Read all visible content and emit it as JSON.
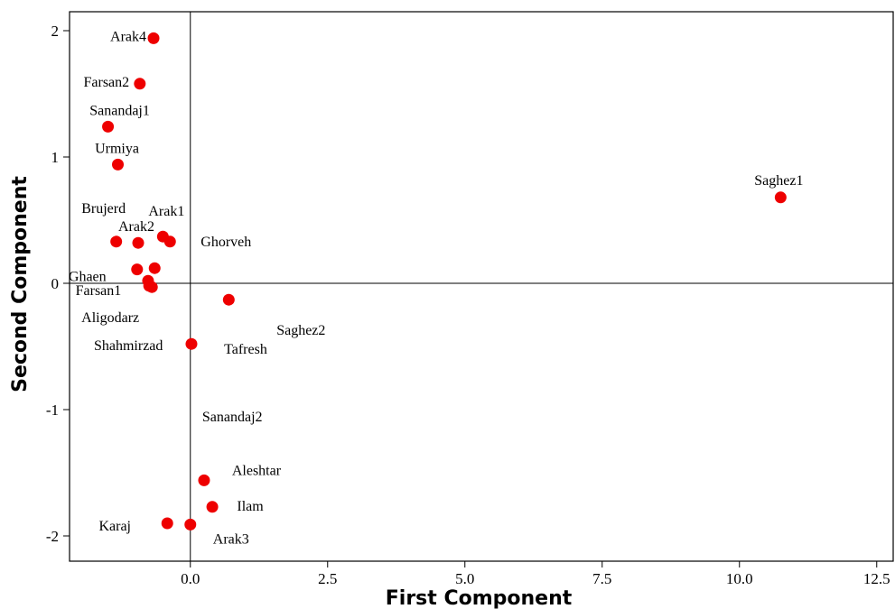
{
  "chart_data": {
    "type": "scatter",
    "title": "",
    "xlabel": "First Component",
    "ylabel": "Second Component",
    "xlim": [
      -2.2,
      12.8
    ],
    "ylim": [
      -2.2,
      2.15
    ],
    "x_ticks": [
      0.0,
      2.5,
      5.0,
      7.5,
      10.0,
      12.5
    ],
    "x_tick_labels": [
      "0.0",
      "2.5",
      "5.0",
      "7.5",
      "10.0",
      "12.5"
    ],
    "y_ticks": [
      2,
      1,
      0,
      -1,
      -2
    ],
    "y_tick_labels": [
      "2",
      "1",
      "0",
      "-1",
      "-2"
    ],
    "reference_lines": {
      "x": 0,
      "y": 0
    },
    "grid": false,
    "legend": "none",
    "point_color": "#ee0000",
    "points": [
      {
        "name": "Arak4",
        "x": -0.67,
        "y": 1.94
      },
      {
        "name": "Farsan2",
        "x": -0.92,
        "y": 1.58
      },
      {
        "name": "Sanandaj1",
        "x": -1.5,
        "y": 1.24
      },
      {
        "name": "Urmiya",
        "x": -1.32,
        "y": 0.94
      },
      {
        "name": "Brujerd",
        "x": -1.35,
        "y": 0.33
      },
      {
        "name": "Arak2",
        "x": -0.95,
        "y": 0.32
      },
      {
        "name": "Arak1",
        "x": -0.5,
        "y": 0.37
      },
      {
        "name": "Ghorveh",
        "x": -0.37,
        "y": 0.33
      },
      {
        "name": "Sanandaj2",
        "x": -0.65,
        "y": 0.12
      },
      {
        "name": "Ghaen",
        "x": -0.97,
        "y": 0.11
      },
      {
        "name": "Farsan1",
        "x": -0.77,
        "y": 0.02
      },
      {
        "name": "Aligodarz",
        "x": -0.75,
        "y": -0.02
      },
      {
        "name": "Shahmirzad",
        "x": -0.7,
        "y": -0.03
      },
      {
        "name": "Saghez1",
        "x": 10.75,
        "y": 0.68
      },
      {
        "name": "Saghez2",
        "x": 0.7,
        "y": -0.13
      },
      {
        "name": "Tafresh",
        "x": 0.02,
        "y": -0.48
      },
      {
        "name": "Aleshtar",
        "x": 0.25,
        "y": -1.56
      },
      {
        "name": "Ilam",
        "x": 0.4,
        "y": -1.77
      },
      {
        "name": "Karaj",
        "x": -0.42,
        "y": -1.9
      },
      {
        "name": "Arak3",
        "x": 0.0,
        "y": -1.91
      }
    ]
  }
}
